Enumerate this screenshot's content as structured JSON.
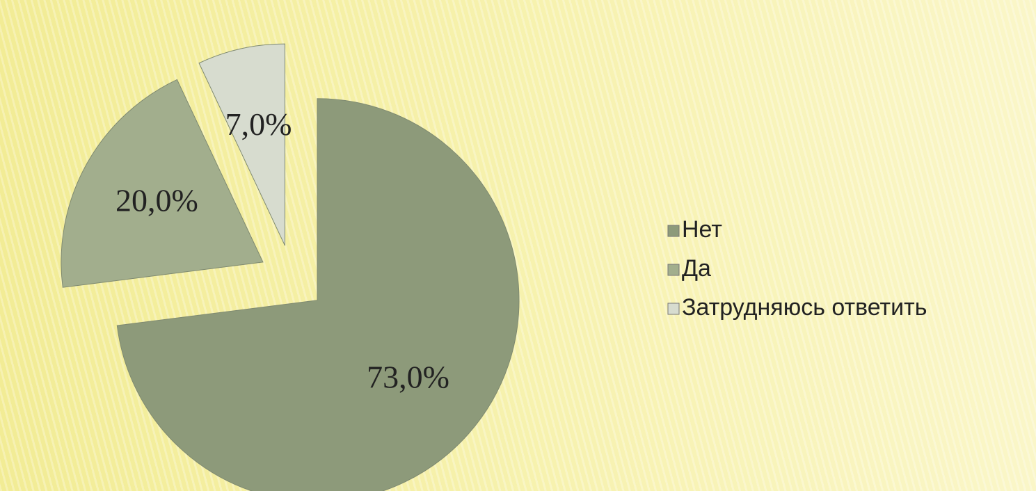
{
  "chart_data": {
    "type": "pie",
    "categories": [
      "Нет",
      "Да",
      "Затрудняюсь ответить"
    ],
    "values": [
      73,
      20,
      7
    ],
    "value_labels": [
      "73,0%",
      "20,0%",
      "7,0%"
    ],
    "colors": [
      "#8d9a7a",
      "#a2ae8d",
      "#d7dccf"
    ],
    "legend": "right"
  }
}
